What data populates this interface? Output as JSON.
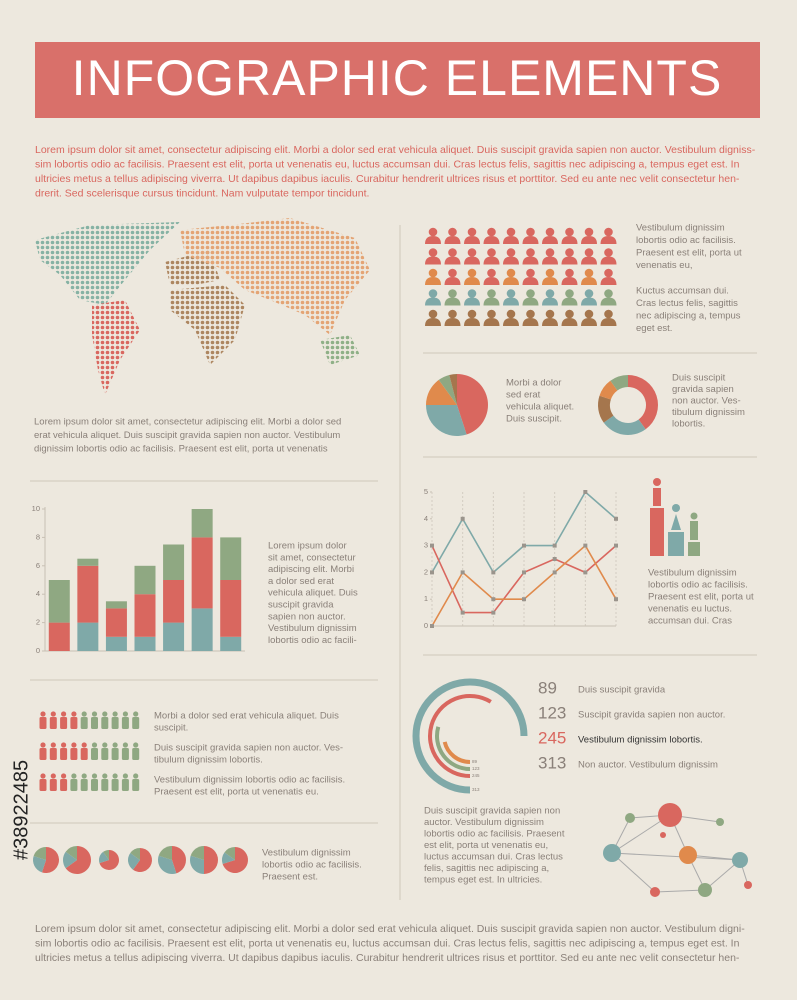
{
  "header": {
    "title": "INFOGRAPHIC ELEMENTS"
  },
  "watermark": "#38922485",
  "texts": {
    "intro": [
      "Lorem ipsum dolor sit amet, consectetur adipiscing elit. Morbi a dolor sed erat vehicula aliquet. Duis suscipit gravida sapien non auctor. Vestibulum digniss-",
      "sim lobortis odio ac facilisis. Praesent est elit, porta ut venenatis eu, luctus accumsan dui. Cras lectus felis, sagittis nec adipiscing a, tempus eget est. In",
      "ultricies metus a tellus adipiscing viverra. Ut dapibus dapibus iaculis. Curabitur hendrerit ultrices risus et porttitor. Sed eu ante nec velit consectetur hen-",
      "drerit. Sed scelerisque cursus tincidunt. Nam vulputate tempor tincidunt."
    ],
    "map": [
      "Lorem ipsum dolor sit amet, consectetur adipiscing elit. Morbi a dolor sed",
      "erat vehicula aliquet. Duis suscipit gravida sapien non auctor. Vestibulum",
      "dignissim lobortis odio ac facilisis. Praesent est elit, porta ut venenatis"
    ],
    "people1": [
      "Vestibulum dignissim",
      "lobortis odio ac facilisis.",
      "Praesent est elit, porta ut",
      "venenatis eu,"
    ],
    "people2": [
      "Kuctus accumsan dui.",
      "Cras lectus felis, sagittis",
      "nec adipiscing a, tempus",
      "eget est."
    ],
    "pie": [
      "Morbi a dolor",
      "sed erat",
      "vehicula aliquet.",
      "Duis suscipit."
    ],
    "donut": [
      "Duis suscipit",
      "gravida sapien",
      "non auctor. Ves-",
      "tibulum dignissim",
      "lobortis."
    ],
    "bars": [
      "Lorem ipsum dolor",
      "sit amet, consectetur",
      "adipiscing elit. Morbi",
      "a dolor sed erat",
      "vehicula aliquet. Duis",
      "suscipit gravida",
      "sapien non auctor.",
      "Vestibulum dignissim",
      "lobortis odio ac facili-"
    ],
    "lines": [
      "Vestibulum dignissim",
      "lobortis odio ac facilisis.",
      "Praesent est elit, porta ut",
      "venenatis eu  luctus.",
      " accumsan dui. Cras"
    ],
    "row1": [
      "Morbi a dolor sed erat vehicula aliquet. Duis",
      "suscipit."
    ],
    "row2": [
      "Duis suscipit gravida sapien non auctor. Ves-",
      "tibulum dignissim lobortis."
    ],
    "row3": [
      "Vestibulum dignissim lobortis odio ac facilisis.",
      "Praesent est elit, porta ut venenatis eu."
    ],
    "pies": [
      "Vestibulum dignissim",
      "lobortis odio ac facilisis.",
      "Praesent est."
    ],
    "network": [
      "Duis suscipit gravida sapien non",
      "auctor. Vestibulum dignissim",
      "lobortis odio ac facilisis. Praesent",
      "est elit, porta ut venenatis eu,",
      "luctus accumsan dui. Cras lectus",
      "felis, sagittis nec adipiscing a,",
      "tempus eget est. In ultricies."
    ],
    "footer": [
      "Lorem ipsum dolor sit amet, consectetur adipiscing elit. Morbi a dolor sed erat vehicula aliquet. Duis suscipit gravida sapien non auctor. Vestibulum digni-",
      "sim lobortis odio ac facilisis. Praesent est elit, porta ut venenatis eu, luctus accumsan dui. Cras lectus felis, sagittis nec adipiscing a, tempus eget est. In",
      "ultricies metus a tellus adipiscing viverra. Ut dapibus dapibus iaculis. Curabitur hendrerit ultrices risus et porttitor. Sed eu ante nec velit consectetur hen-"
    ]
  },
  "chart_data": [
    {
      "type": "stacked-bar",
      "categories": [
        null,
        null,
        null,
        null,
        null,
        null,
        null
      ],
      "series": [
        {
          "color": "#7fa9a8",
          "values": [
            0,
            2,
            1,
            1,
            2,
            3,
            1
          ]
        },
        {
          "color": "#d9675f",
          "values": [
            2,
            4,
            2,
            3,
            3,
            5,
            4
          ]
        },
        {
          "color": "#8fa882",
          "values": [
            3,
            0.5,
            0.5,
            2,
            2.5,
            2,
            3
          ]
        }
      ],
      "ylim": [
        0,
        10
      ],
      "yticks": [
        0,
        2,
        4,
        6,
        8,
        10
      ],
      "grid": false
    },
    {
      "type": "line",
      "categories": [
        null,
        null,
        null,
        null,
        null,
        null,
        null
      ],
      "series": [
        {
          "color": "#7fa9a8",
          "values": [
            2,
            4,
            2,
            3,
            3,
            5,
            4
          ]
        },
        {
          "color": "#d9675f",
          "values": [
            3,
            0.5,
            0.5,
            2,
            2.5,
            2,
            3
          ]
        },
        {
          "color": "#e08a4c",
          "values": [
            0,
            2,
            1,
            1,
            2,
            3,
            1
          ]
        }
      ],
      "ylim": [
        0,
        5
      ],
      "yticks": [
        0,
        1,
        2,
        3,
        4,
        5
      ],
      "grid": true
    },
    {
      "type": "pie",
      "values": [
        45,
        30,
        15,
        6,
        4
      ],
      "colors": [
        "#d9675f",
        "#7fa9a8",
        "#e08a4c",
        "#8fa882",
        "#a5764d"
      ]
    },
    {
      "type": "donut",
      "values": [
        40,
        25,
        15,
        10,
        10
      ],
      "colors": [
        "#d9675f",
        "#7fa9a8",
        "#a5764d",
        "#e08a4c",
        "#8fa882"
      ]
    },
    {
      "type": "radial",
      "values": [
        89,
        123,
        245,
        313
      ],
      "colors": [
        "#e08a4c",
        "#8fa882",
        "#d9675f",
        "#7fa9a8"
      ],
      "categories": [
        "Duis suscipit gravida",
        "Suscipit gravida sapien non auctor.",
        "Vestibulum dignissim lobortis.",
        "Non auctor. Vestibulum dignissim"
      ]
    },
    {
      "type": "pie-row",
      "colors": [
        "#d9675f",
        "#7fa9a8",
        "#8fa882"
      ],
      "pies": [
        {
          "values": [
            55,
            25,
            20
          ]
        },
        {
          "values": [
            65,
            20,
            15
          ]
        },
        {
          "values": [
            70,
            20,
            10
          ]
        },
        {
          "values": [
            60,
            25,
            15
          ]
        },
        {
          "values": [
            45,
            35,
            20
          ]
        },
        {
          "values": [
            50,
            30,
            20
          ]
        },
        {
          "values": [
            70,
            15,
            15
          ]
        }
      ]
    }
  ]
}
